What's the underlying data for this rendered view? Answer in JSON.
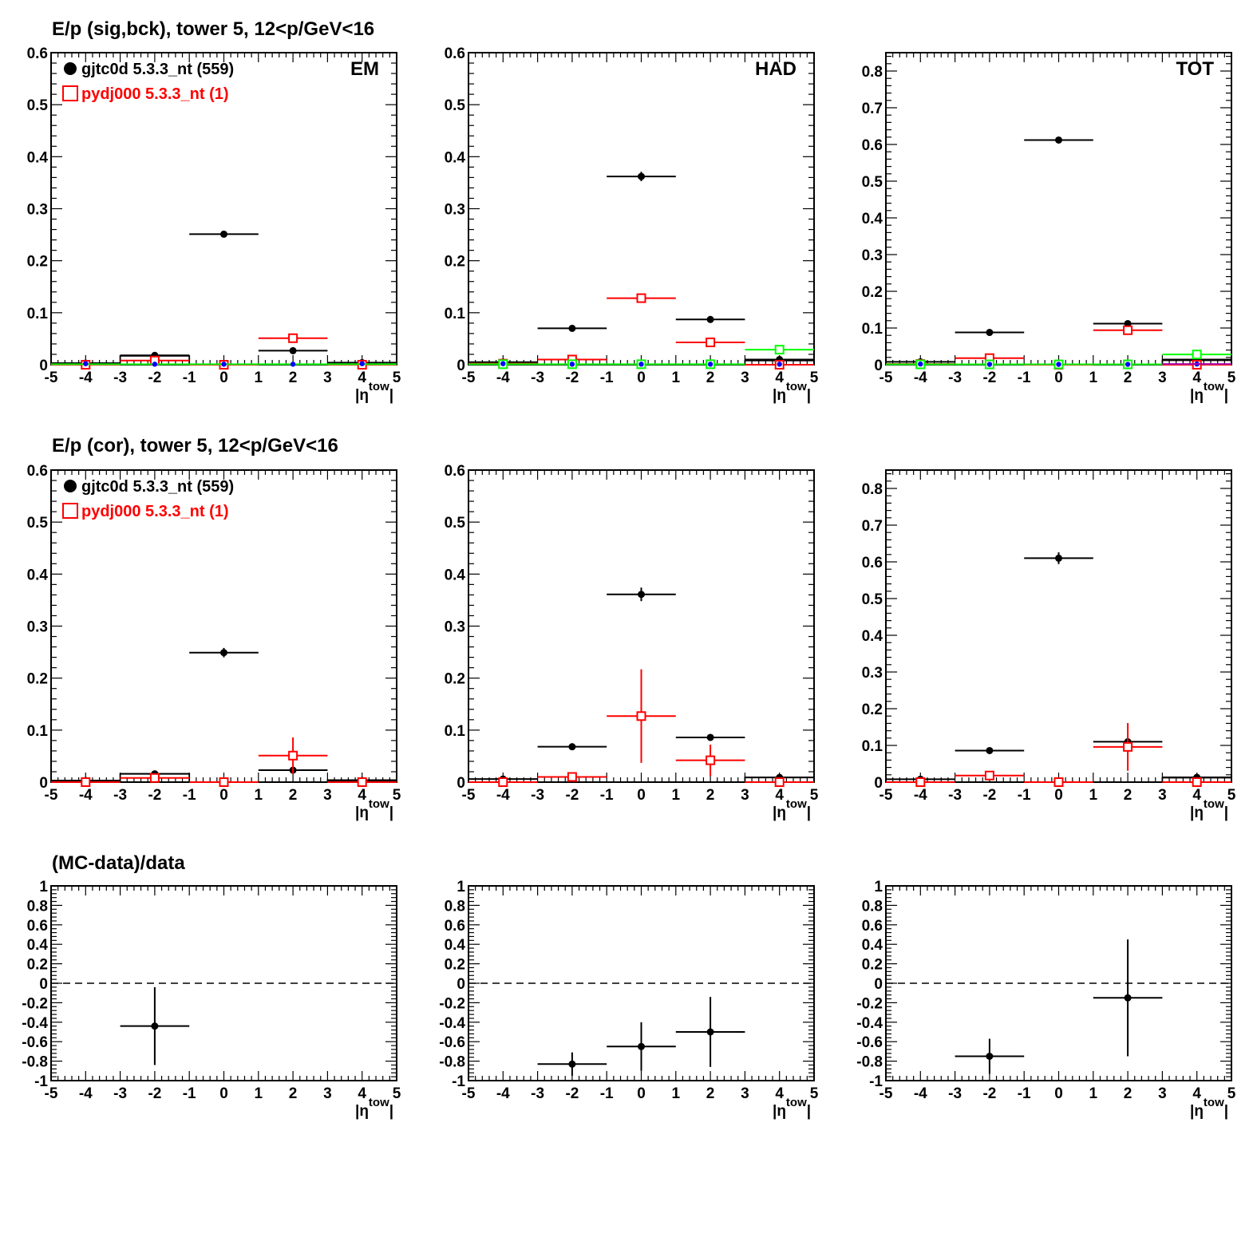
{
  "figure": {
    "row_titles": [
      "E/p (sig,bck), tower 5, 12<p/GeV<16",
      "E/p (cor), tower 5, 12<p/GeV<16",
      "(MC-data)/data"
    ],
    "panel_labels": [
      "EM",
      "HAD",
      "TOT"
    ],
    "legend": [
      {
        "label": "gjtc0d 5.3.3_nt (559)",
        "marker": "filled-circle",
        "color": "#000000"
      },
      {
        "label": "pydj000 5.3.3_nt (1)",
        "marker": "open-square",
        "color": "#ff0000"
      }
    ],
    "xaxis_title": "|η",
    "xaxis_title_sup": "tow",
    "xaxis_title_end": "|",
    "colors": {
      "data": "#000000",
      "mc": "#ff0000",
      "green": "#00ff00",
      "blue": "#0000ff",
      "purple": "#aa00aa"
    }
  },
  "chart_data": [
    {
      "id": "sig-em",
      "type": "scatter",
      "title": "E/p (sig,bck), tower 5, 12<p/GeV<16",
      "label": "EM",
      "xlim": [
        -5,
        5
      ],
      "ylim": [
        0,
        0.6
      ],
      "xticks": [
        -5,
        -4,
        -3,
        -2,
        -1,
        0,
        1,
        2,
        3,
        4,
        5
      ],
      "yticks": [
        0,
        0.1,
        0.2,
        0.3,
        0.4,
        0.5,
        0.6
      ],
      "legend": true,
      "series": [
        {
          "name": "gjtc0d 5.3.3_nt (559)",
          "style": "data",
          "color": "#000000",
          "points": [
            {
              "x": -4,
              "y": 0.003,
              "err": 0.001
            },
            {
              "x": -2,
              "y": 0.018,
              "err": 0.002
            },
            {
              "x": 0,
              "y": 0.251,
              "err": 0.006
            },
            {
              "x": 2,
              "y": 0.027,
              "err": 0.002
            },
            {
              "x": 4,
              "y": 0.004,
              "err": 0.001
            }
          ]
        },
        {
          "name": "pydj000 5.3.3_nt (1)",
          "style": "mc",
          "color": "#ff0000",
          "points": [
            {
              "x": -4,
              "y": 0,
              "err": 0
            },
            {
              "x": -2,
              "y": 0.008,
              "err": 0.003
            },
            {
              "x": 0,
              "y": 0,
              "err": 0
            },
            {
              "x": 2,
              "y": 0.051,
              "err": 0.003
            },
            {
              "x": 4,
              "y": 0,
              "err": 0
            }
          ]
        },
        {
          "style": "line",
          "color": "#00ff00",
          "points": [
            {
              "x": -4,
              "y": 0.001
            },
            {
              "x": -2,
              "y": 0.001
            },
            {
              "x": 0,
              "y": 0.001
            },
            {
              "x": 2,
              "y": 0.001
            },
            {
              "x": 4,
              "y": 0.001
            }
          ]
        },
        {
          "style": "dot",
          "color": "#0000ff",
          "points": [
            {
              "x": -4,
              "y": 0.002
            },
            {
              "x": -2,
              "y": 0.001
            },
            {
              "x": 0,
              "y": 0.001
            },
            {
              "x": 2,
              "y": 0.001
            },
            {
              "x": 4,
              "y": 0.002
            }
          ]
        }
      ],
      "boxes": [
        {
          "x0": -3,
          "x1": -1,
          "y": 0.017
        }
      ]
    },
    {
      "id": "sig-had",
      "type": "scatter",
      "label": "HAD",
      "xlim": [
        -5,
        5
      ],
      "ylim": [
        0,
        0.6
      ],
      "xticks": [
        -5,
        -4,
        -3,
        -2,
        -1,
        0,
        1,
        2,
        3,
        4,
        5
      ],
      "yticks": [
        0,
        0.1,
        0.2,
        0.3,
        0.4,
        0.5,
        0.6
      ],
      "series": [
        {
          "style": "data",
          "color": "#000000",
          "points": [
            {
              "x": -4,
              "y": 0.005,
              "err": 0.001
            },
            {
              "x": -2,
              "y": 0.07,
              "err": 0.003
            },
            {
              "x": 0,
              "y": 0.362,
              "err": 0.009
            },
            {
              "x": 2,
              "y": 0.087,
              "err": 0.003
            },
            {
              "x": 4,
              "y": 0.01,
              "err": 0.001
            }
          ]
        },
        {
          "style": "mc",
          "color": "#ff0000",
          "points": [
            {
              "x": -4,
              "y": 0.002,
              "err": 0
            },
            {
              "x": -2,
              "y": 0.01,
              "err": 0.003
            },
            {
              "x": 0,
              "y": 0.128,
              "err": 0.004
            },
            {
              "x": 2,
              "y": 0.043,
              "err": 0.003
            },
            {
              "x": 4,
              "y": 0.0,
              "err": 0
            }
          ]
        },
        {
          "style": "mc",
          "color": "#00ff00",
          "points": [
            {
              "x": -4,
              "y": 0.001,
              "err": 0
            },
            {
              "x": -2,
              "y": 0.001,
              "err": 0
            },
            {
              "x": 0,
              "y": 0.001,
              "err": 0
            },
            {
              "x": 2,
              "y": 0.001,
              "err": 0
            },
            {
              "x": 4,
              "y": 0.029,
              "err": 0.003
            }
          ]
        },
        {
          "style": "dot",
          "color": "#0000ff",
          "points": [
            {
              "x": -4,
              "y": 0.002
            },
            {
              "x": -2,
              "y": 0.001
            },
            {
              "x": 0,
              "y": 0.001
            },
            {
              "x": 2,
              "y": 0.001
            },
            {
              "x": 4,
              "y": 0.001
            }
          ]
        }
      ],
      "boxes": [
        {
          "x0": 3,
          "x1": 5,
          "y": 0.008
        }
      ]
    },
    {
      "id": "sig-tot",
      "type": "scatter",
      "label": "TOT",
      "xlim": [
        -5,
        5
      ],
      "ylim": [
        0,
        0.85
      ],
      "xticks": [
        -5,
        -4,
        -3,
        -2,
        -1,
        0,
        1,
        2,
        3,
        4,
        5
      ],
      "yticks": [
        0,
        0.1,
        0.2,
        0.3,
        0.4,
        0.5,
        0.6,
        0.7,
        0.8
      ],
      "series": [
        {
          "style": "data",
          "color": "#000000",
          "points": [
            {
              "x": -4,
              "y": 0.008,
              "err": 0.001
            },
            {
              "x": -2,
              "y": 0.088,
              "err": 0.003
            },
            {
              "x": 0,
              "y": 0.612,
              "err": 0.006
            },
            {
              "x": 2,
              "y": 0.112,
              "err": 0.003
            },
            {
              "x": 4,
              "y": 0.014,
              "err": 0.001
            }
          ]
        },
        {
          "style": "mc",
          "color": "#ff0000",
          "points": [
            {
              "x": -4,
              "y": 0.002,
              "err": 0
            },
            {
              "x": -2,
              "y": 0.018,
              "err": 0.003
            },
            {
              "x": 0,
              "y": 0.0,
              "err": 0
            },
            {
              "x": 2,
              "y": 0.094,
              "err": 0.003
            },
            {
              "x": 4,
              "y": 0.0,
              "err": 0
            }
          ]
        },
        {
          "style": "mc",
          "color": "#00ff00",
          "points": [
            {
              "x": -4,
              "y": 0.001,
              "err": 0
            },
            {
              "x": -2,
              "y": 0.001,
              "err": 0
            },
            {
              "x": 0,
              "y": 0.001,
              "err": 0
            },
            {
              "x": 2,
              "y": 0.001,
              "err": 0
            },
            {
              "x": 4,
              "y": 0.028,
              "err": 0.003
            }
          ]
        },
        {
          "style": "dot",
          "color": "#0000ff",
          "points": [
            {
              "x": -4,
              "y": 0.002
            },
            {
              "x": -2,
              "y": 0.001
            },
            {
              "x": 0,
              "y": 0.001
            },
            {
              "x": 2,
              "y": 0.001
            },
            {
              "x": 4,
              "y": 0.002
            }
          ]
        },
        {
          "style": "line",
          "color": "#aa00aa",
          "points": [
            {
              "x": 4,
              "y": 0.002
            }
          ]
        }
      ],
      "boxes": [
        {
          "x0": 3,
          "x1": 5,
          "y": 0.012
        }
      ]
    },
    {
      "id": "cor-em",
      "type": "scatter",
      "title": "E/p (cor), tower 5, 12<p/GeV<16",
      "xlim": [
        -5,
        5
      ],
      "ylim": [
        0,
        0.6
      ],
      "xticks": [
        -5,
        -4,
        -3,
        -2,
        -1,
        0,
        1,
        2,
        3,
        4,
        5
      ],
      "yticks": [
        0,
        0.1,
        0.2,
        0.3,
        0.4,
        0.5,
        0.6
      ],
      "legend": true,
      "series": [
        {
          "name": "gjtc0d 5.3.3_nt (559)",
          "style": "data",
          "color": "#000000",
          "points": [
            {
              "x": -4,
              "y": 0.003,
              "err": 0.001
            },
            {
              "x": -2,
              "y": 0.016,
              "err": 0.002
            },
            {
              "x": 0,
              "y": 0.249,
              "err": 0.009
            },
            {
              "x": 2,
              "y": 0.023,
              "err": 0.003
            },
            {
              "x": 4,
              "y": 0.003,
              "err": 0.001
            }
          ]
        },
        {
          "name": "pydj000 5.3.3_nt (1)",
          "style": "mc",
          "color": "#ff0000",
          "points": [
            {
              "x": -4,
              "y": 0.0,
              "err": 0
            },
            {
              "x": -2,
              "y": 0.008,
              "err": 0.003
            },
            {
              "x": 0,
              "y": 0.0,
              "err": 0
            },
            {
              "x": 2,
              "y": 0.051,
              "err": 0.035
            },
            {
              "x": 4,
              "y": 0.0,
              "err": 0
            }
          ]
        }
      ],
      "boxes": [
        {
          "x0": -3,
          "x1": -1,
          "y": 0.016
        },
        {
          "x0": 3,
          "x1": 5,
          "y": 0.004
        }
      ]
    },
    {
      "id": "cor-had",
      "type": "scatter",
      "xlim": [
        -5,
        5
      ],
      "ylim": [
        0,
        0.6
      ],
      "xticks": [
        -5,
        -4,
        -3,
        -2,
        -1,
        0,
        1,
        2,
        3,
        4,
        5
      ],
      "yticks": [
        0,
        0.1,
        0.2,
        0.3,
        0.4,
        0.5,
        0.6
      ],
      "series": [
        {
          "style": "data",
          "color": "#000000",
          "points": [
            {
              "x": -4,
              "y": 0.006,
              "err": 0.001
            },
            {
              "x": -2,
              "y": 0.068,
              "err": 0.003
            },
            {
              "x": 0,
              "y": 0.361,
              "err": 0.013
            },
            {
              "x": 2,
              "y": 0.086,
              "err": 0.003
            },
            {
              "x": 4,
              "y": 0.009,
              "err": 0.001
            }
          ]
        },
        {
          "style": "mc",
          "color": "#ff0000",
          "points": [
            {
              "x": -4,
              "y": 0.0,
              "err": 0
            },
            {
              "x": -2,
              "y": 0.01,
              "err": 0.003
            },
            {
              "x": 0,
              "y": 0.127,
              "err": 0.09
            },
            {
              "x": 2,
              "y": 0.042,
              "err": 0.03
            },
            {
              "x": 4,
              "y": 0.0,
              "err": 0
            }
          ]
        }
      ],
      "boxes": [
        {
          "x0": 3,
          "x1": 5,
          "y": 0.009
        }
      ]
    },
    {
      "id": "cor-tot",
      "type": "scatter",
      "xlim": [
        -5,
        5
      ],
      "ylim": [
        0,
        0.85
      ],
      "xticks": [
        -5,
        -4,
        -3,
        -2,
        -1,
        0,
        1,
        2,
        3,
        4,
        5
      ],
      "yticks": [
        0,
        0.1,
        0.2,
        0.3,
        0.4,
        0.5,
        0.6,
        0.7,
        0.8
      ],
      "series": [
        {
          "style": "data",
          "color": "#000000",
          "points": [
            {
              "x": -4,
              "y": 0.008,
              "err": 0.001
            },
            {
              "x": -2,
              "y": 0.086,
              "err": 0.003
            },
            {
              "x": 0,
              "y": 0.61,
              "err": 0.016
            },
            {
              "x": 2,
              "y": 0.11,
              "err": 0.004
            },
            {
              "x": 4,
              "y": 0.013,
              "err": 0.001
            }
          ]
        },
        {
          "style": "mc",
          "color": "#ff0000",
          "points": [
            {
              "x": -4,
              "y": 0.0,
              "err": 0
            },
            {
              "x": -2,
              "y": 0.018,
              "err": 0.004
            },
            {
              "x": 0,
              "y": 0.0,
              "err": 0
            },
            {
              "x": 2,
              "y": 0.096,
              "err": 0.065
            },
            {
              "x": 4,
              "y": 0.0,
              "err": 0
            }
          ]
        }
      ],
      "boxes": [
        {
          "x0": 3,
          "x1": 5,
          "y": 0.012
        }
      ]
    },
    {
      "id": "ratio-em",
      "type": "scatter",
      "title": "(MC-data)/data",
      "xlim": [
        -5,
        5
      ],
      "ylim": [
        -1,
        1
      ],
      "xticks": [
        -5,
        -4,
        -3,
        -2,
        -1,
        0,
        1,
        2,
        3,
        4,
        5
      ],
      "yticks": [
        -1,
        -0.8,
        -0.6,
        -0.4,
        -0.2,
        0,
        0.2,
        0.4,
        0.6,
        0.8,
        1
      ],
      "dashed_zero": true,
      "series": [
        {
          "style": "data",
          "color": "#000000",
          "points": [
            {
              "x": -2,
              "y": -0.44,
              "err": 0.4
            }
          ]
        }
      ]
    },
    {
      "id": "ratio-had",
      "type": "scatter",
      "xlim": [
        -5,
        5
      ],
      "ylim": [
        -1,
        1
      ],
      "xticks": [
        -5,
        -4,
        -3,
        -2,
        -1,
        0,
        1,
        2,
        3,
        4,
        5
      ],
      "yticks": [
        -1,
        -0.8,
        -0.6,
        -0.4,
        -0.2,
        0,
        0.2,
        0.4,
        0.6,
        0.8,
        1
      ],
      "dashed_zero": true,
      "series": [
        {
          "style": "data",
          "color": "#000000",
          "points": [
            {
              "x": -2,
              "y": -0.83,
              "err": 0.12
            },
            {
              "x": 0,
              "y": -0.65,
              "err": 0.25
            },
            {
              "x": 2,
              "y": -0.5,
              "err": 0.36
            }
          ]
        }
      ]
    },
    {
      "id": "ratio-tot",
      "type": "scatter",
      "xlim": [
        -5,
        5
      ],
      "ylim": [
        -1,
        1
      ],
      "xticks": [
        -5,
        -4,
        -3,
        -2,
        -1,
        0,
        1,
        2,
        3,
        4,
        5
      ],
      "yticks": [
        -1,
        -0.8,
        -0.6,
        -0.4,
        -0.2,
        0,
        0.2,
        0.4,
        0.6,
        0.8,
        1
      ],
      "dashed_zero": true,
      "series": [
        {
          "style": "data",
          "color": "#000000",
          "points": [
            {
              "x": -2,
              "y": -0.75,
              "err": 0.18
            },
            {
              "x": 2,
              "y": -0.15,
              "err": 0.6
            }
          ]
        }
      ]
    }
  ]
}
